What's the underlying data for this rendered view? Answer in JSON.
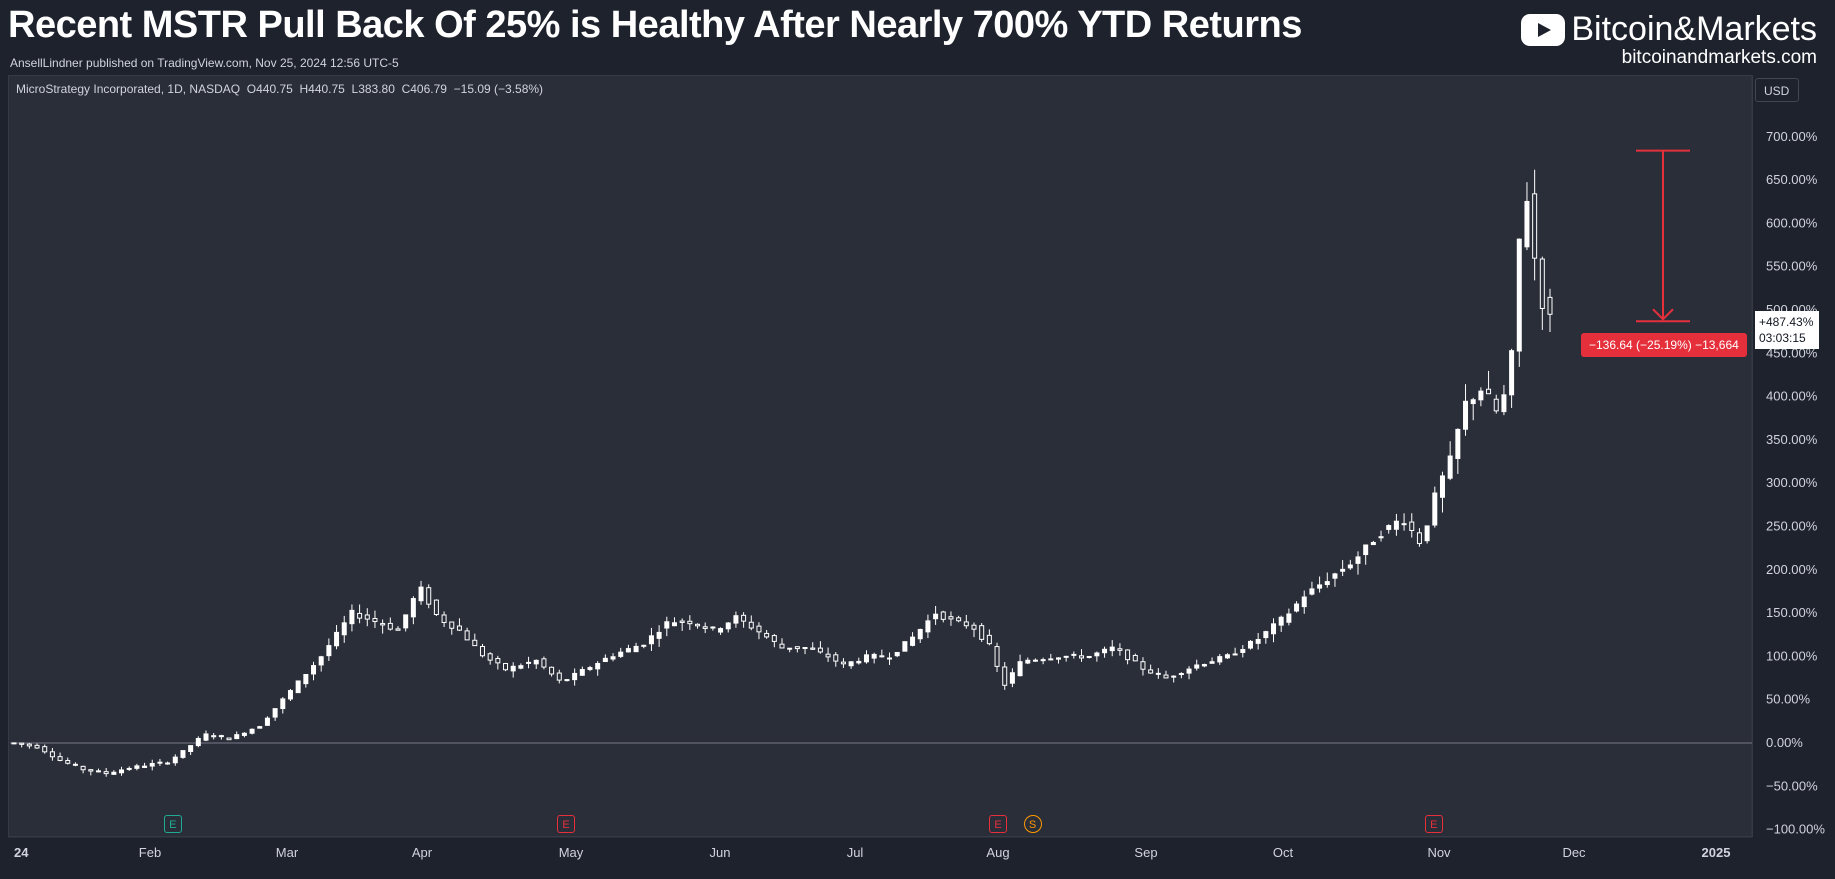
{
  "header": {
    "title": "Recent MSTR Pull Back Of 25% is Healthy After Nearly 700% YTD Returns",
    "published": "AnsellLindner published on TradingView.com, Nov 25, 2024 12:56 UTC-5"
  },
  "brand": {
    "name": "Bitcoin&Markets",
    "url": "bitcoinandmarkets.com"
  },
  "currency_button": "USD",
  "legend": {
    "symbol": "MicroStrategy Incorporated, 1D, NASDAQ",
    "open": "O440.75",
    "high": "H440.75",
    "low": "L383.80",
    "close": "C406.79",
    "change": "−15.09 (−3.58%)"
  },
  "price_tag": {
    "value": "+487.43%",
    "countdown": "03:03:15"
  },
  "measure_label": "−136.64 (−25.19%) −13,664",
  "colors": {
    "background": "#1e222d",
    "pane": "#2a2e39",
    "candle": "#ffffff",
    "measure": "#e5303c",
    "earnings": "#e5303c",
    "earnings_past": "#22ab94",
    "split": "#ff9800"
  },
  "events": [
    {
      "label": "E",
      "month": "Feb",
      "day": 6,
      "kind": "earnings_past"
    },
    {
      "label": "E",
      "month": "Apr",
      "day": 30,
      "kind": "earnings"
    },
    {
      "label": "E",
      "month": "Aug",
      "day": 1,
      "kind": "earnings"
    },
    {
      "label": "S",
      "month": "Aug",
      "day": 8,
      "kind": "split"
    },
    {
      "label": "E",
      "month": "Oct",
      "day": 30,
      "kind": "earnings"
    }
  ],
  "chart_data": {
    "type": "candlestick",
    "y_unit": "percent",
    "ylim": [
      -100,
      730
    ],
    "y_ticks": [
      "700.00%",
      "650.00%",
      "600.00%",
      "550.00%",
      "500.00%",
      "450.00%",
      "400.00%",
      "350.00%",
      "300.00%",
      "250.00%",
      "200.00%",
      "150.00%",
      "100.00%",
      "50.00%",
      "0.00%",
      "−50.00%",
      "−100.00%"
    ],
    "x_ticks": [
      "24",
      "Feb",
      "Mar",
      "Apr",
      "May",
      "Jun",
      "Jul",
      "Aug",
      "Sep",
      "Oct",
      "Nov",
      "Dec",
      "2025"
    ],
    "grid": false,
    "series_path": [
      [
        0,
        0
      ],
      [
        8,
        -5
      ],
      [
        15,
        -20
      ],
      [
        22,
        -30
      ],
      [
        30,
        -35
      ],
      [
        36,
        -30
      ],
      [
        44,
        -25
      ],
      [
        50,
        -22
      ],
      [
        55,
        -10
      ],
      [
        62,
        10
      ],
      [
        70,
        5
      ],
      [
        80,
        20
      ],
      [
        90,
        60
      ],
      [
        100,
        100
      ],
      [
        110,
        150
      ],
      [
        118,
        140
      ],
      [
        125,
        130
      ],
      [
        132,
        180
      ],
      [
        138,
        145
      ],
      [
        145,
        130
      ],
      [
        153,
        100
      ],
      [
        160,
        85
      ],
      [
        170,
        95
      ],
      [
        178,
        70
      ],
      [
        186,
        85
      ],
      [
        194,
        100
      ],
      [
        205,
        115
      ],
      [
        213,
        140
      ],
      [
        220,
        140
      ],
      [
        228,
        130
      ],
      [
        235,
        145
      ],
      [
        242,
        130
      ],
      [
        250,
        110
      ],
      [
        258,
        110
      ],
      [
        265,
        100
      ],
      [
        270,
        90
      ],
      [
        278,
        100
      ],
      [
        285,
        100
      ],
      [
        292,
        120
      ],
      [
        300,
        150
      ],
      [
        306,
        140
      ],
      [
        312,
        135
      ],
      [
        318,
        110
      ],
      [
        322,
        65
      ],
      [
        328,
        95
      ],
      [
        340,
        100
      ],
      [
        350,
        100
      ],
      [
        358,
        110
      ],
      [
        368,
        85
      ],
      [
        375,
        75
      ],
      [
        385,
        90
      ],
      [
        395,
        100
      ],
      [
        405,
        120
      ],
      [
        410,
        135
      ],
      [
        415,
        150
      ],
      [
        420,
        170
      ],
      [
        428,
        190
      ],
      [
        436,
        210
      ],
      [
        444,
        240
      ],
      [
        452,
        260
      ],
      [
        458,
        230
      ],
      [
        463,
        290
      ],
      [
        468,
        330
      ],
      [
        472,
        390
      ],
      [
        478,
        410
      ],
      [
        483,
        380
      ],
      [
        487,
        420
      ],
      [
        490,
        580
      ],
      [
        493,
        640
      ],
      [
        496,
        520
      ],
      [
        500,
        490
      ]
    ],
    "measure": {
      "from_pct": 684,
      "to_pct": 487,
      "change": -136.64,
      "change_pct": -25.19
    }
  }
}
